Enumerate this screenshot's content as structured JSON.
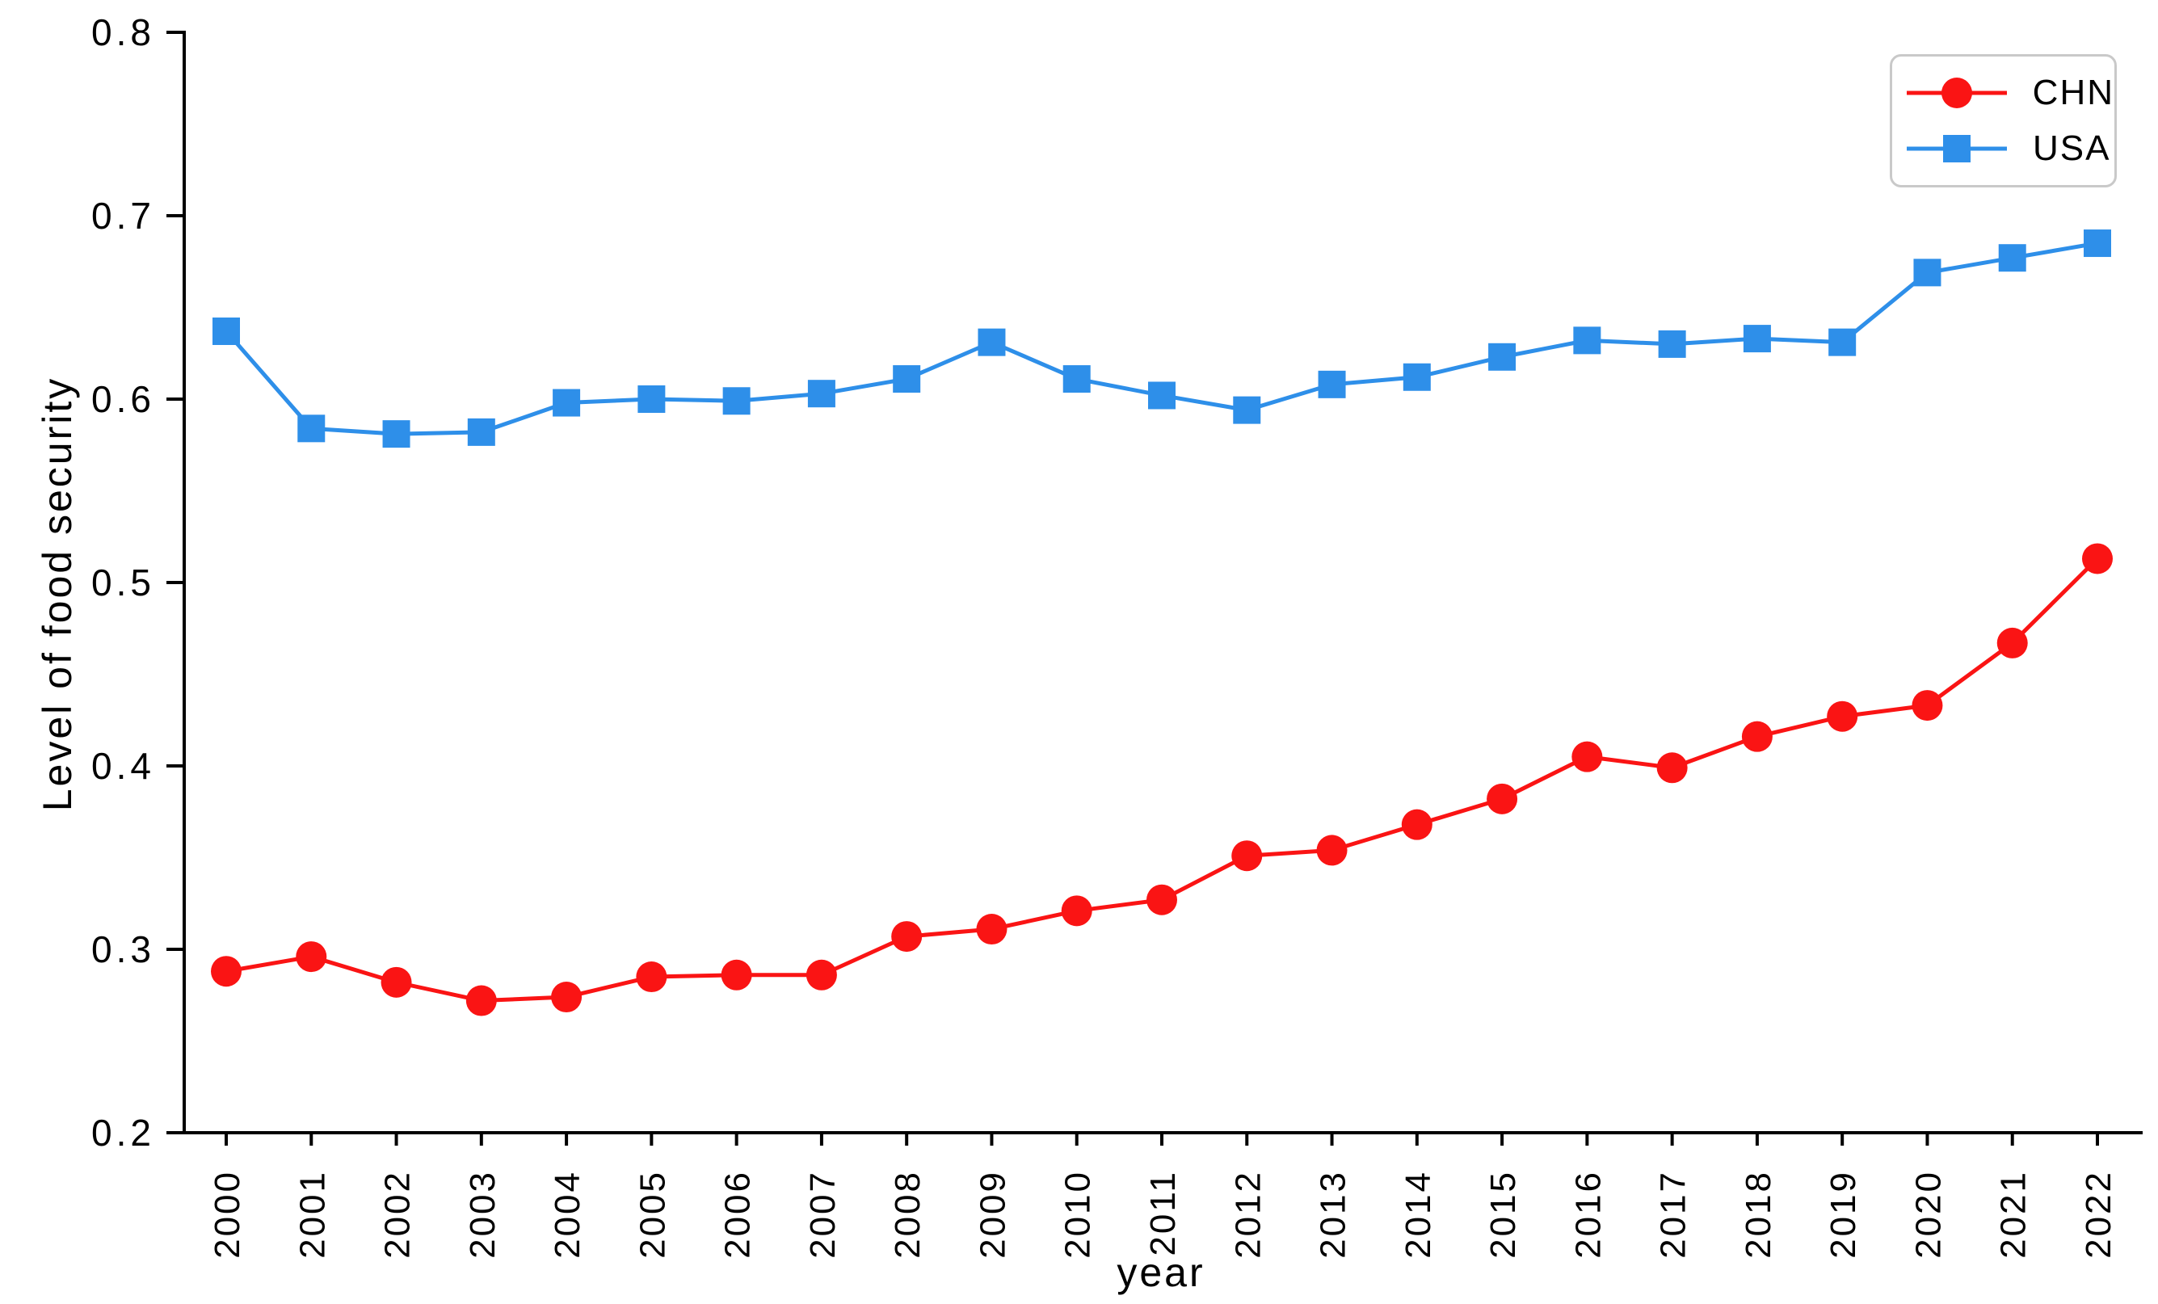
{
  "figure": {
    "background": "#ffffff"
  },
  "axes": {
    "xlabel": "year",
    "ylabel": "Level of food security",
    "spine_color": "#000000"
  },
  "legend": {
    "border_color": "#c9c9c9",
    "items": [
      {
        "label": "CHN",
        "marker": "circle"
      },
      {
        "label": "USA",
        "marker": "square"
      }
    ]
  },
  "chart_data": {
    "type": "line",
    "title": "",
    "xlabel": "year",
    "ylabel": "Level of food security",
    "x": [
      2000,
      2001,
      2002,
      2003,
      2004,
      2005,
      2006,
      2007,
      2008,
      2009,
      2010,
      2011,
      2012,
      2013,
      2014,
      2015,
      2016,
      2017,
      2018,
      2019,
      2020,
      2021,
      2022
    ],
    "xtick_labels": [
      "2000",
      "2001",
      "2002",
      "2003",
      "2004",
      "2005",
      "2006",
      "2007",
      "2008",
      "2009",
      "2010",
      "2011",
      "2012",
      "2013",
      "2014",
      "2015",
      "2016",
      "2017",
      "2018",
      "2019",
      "2020",
      "2021",
      "2022"
    ],
    "ylim": [
      0.2,
      0.8
    ],
    "yticks": [
      0.2,
      0.3,
      0.4,
      0.5,
      0.6,
      0.7,
      0.8
    ],
    "ytick_labels": [
      "0.2",
      "0.3",
      "0.4",
      "0.5",
      "0.6",
      "0.7",
      "0.8"
    ],
    "grid": false,
    "legend_position": "upper right",
    "series": [
      {
        "name": "CHN",
        "color": "#fa1414",
        "marker": "circle",
        "values": [
          0.288,
          0.296,
          0.282,
          0.272,
          0.274,
          0.285,
          0.286,
          0.286,
          0.307,
          0.311,
          0.321,
          0.327,
          0.351,
          0.354,
          0.368,
          0.382,
          0.405,
          0.399,
          0.416,
          0.427,
          0.433,
          0.467,
          0.513
        ]
      },
      {
        "name": "USA",
        "color": "#2e8fe9",
        "marker": "square",
        "values": [
          0.637,
          0.584,
          0.581,
          0.582,
          0.598,
          0.6,
          0.599,
          0.603,
          0.611,
          0.631,
          0.611,
          0.602,
          0.594,
          0.608,
          0.612,
          0.623,
          0.632,
          0.63,
          0.633,
          0.631,
          0.669,
          0.677,
          0.685
        ]
      }
    ]
  }
}
